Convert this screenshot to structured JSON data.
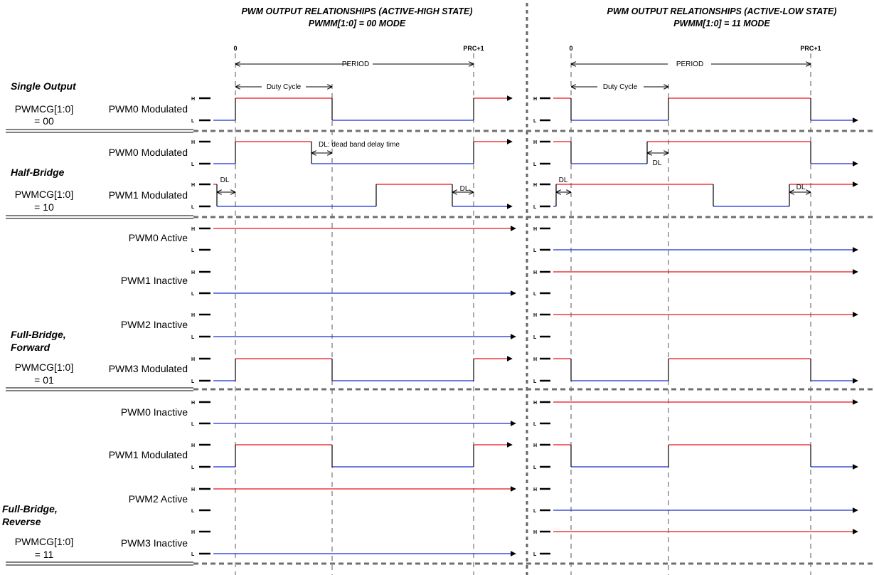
{
  "titles": {
    "left_line1": "PWM OUTPUT RELATIONSHIPS (ACTIVE-HIGH STATE)",
    "left_line2": "PWMM[1:0] = 00 MODE",
    "right_line1": "PWM OUTPUT RELATIONSHIPS (ACTIVE-LOW STATE)",
    "right_line2": "PWMM[1:0] = 11 MODE"
  },
  "markers": {
    "zero": "0",
    "end": "PRC+1",
    "period": "PERIOD",
    "duty": "Duty Cycle"
  },
  "level_labels": {
    "high": "H",
    "low": "L"
  },
  "annotations": {
    "dl": "DL",
    "dl_full": "DL: dead band delay time"
  },
  "groups": [
    {
      "name": "Single Output",
      "config": [
        "PWMCG[1:0]",
        "= 00"
      ]
    },
    {
      "name": "Half-Bridge",
      "config": [
        "PWMCG[1:0]",
        "= 10"
      ]
    },
    {
      "name": "Full-Bridge, Forward",
      "name_lines": [
        "Full-Bridge,",
        "Forward"
      ],
      "config": [
        "PWMCG[1:0]",
        "= 01"
      ]
    },
    {
      "name": "Full-Bridge, Reverse",
      "name_lines": [
        "Full-Bridge,",
        "Reverse"
      ],
      "config": [
        "PWMCG[1:0]",
        "= 11"
      ]
    }
  ],
  "signals": [
    {
      "label": "PWM0 Modulated"
    },
    {
      "label": "PWM0 Modulated"
    },
    {
      "label": "PWM1 Modulated"
    },
    {
      "label": "PWM0 Active"
    },
    {
      "label": "PWM1 Inactive"
    },
    {
      "label": "PWM2 Inactive"
    },
    {
      "label": "PWM3 Modulated"
    },
    {
      "label": "PWM0 Inactive"
    },
    {
      "label": "PWM1 Modulated"
    },
    {
      "label": "PWM2 Active"
    },
    {
      "label": "PWM3 Inactive"
    }
  ],
  "colors": {
    "high_trace": "#e8101a",
    "low_trace": "#1a2fd0",
    "guide": "#555555",
    "separator": "#6f6f6f"
  }
}
